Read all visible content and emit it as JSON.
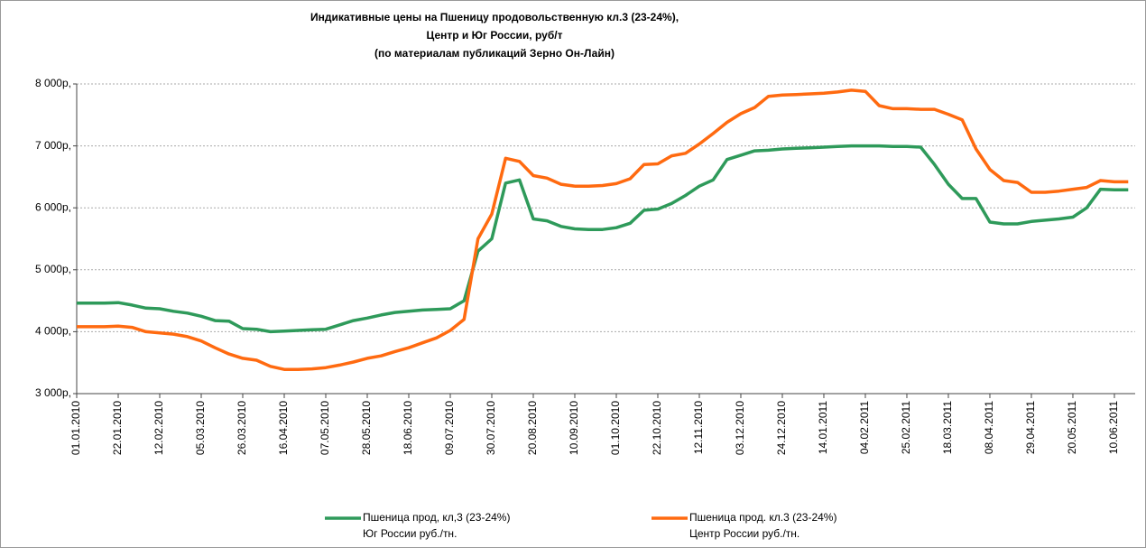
{
  "chart_data": {
    "type": "line",
    "title": [
      "Индикативные цены на Пшеницу продовольственную кл.3 (23-24%),",
      "Центр и Юг России,  руб/т",
      "(по материалам публикаций Зерно Он-Лайн)"
    ],
    "categories": [
      "01.01.2010",
      null,
      null,
      "22.01.2010",
      null,
      null,
      "12.02.2010",
      null,
      null,
      "05.03.2010",
      null,
      null,
      "26.03.2010",
      null,
      null,
      "16.04.2010",
      null,
      null,
      "07.05.2010",
      null,
      null,
      "28.05.2010",
      null,
      null,
      "18.06.2010",
      null,
      null,
      "09.07.2010",
      null,
      null,
      "30.07.2010",
      null,
      null,
      "20.08.2010",
      null,
      null,
      "10.09.2010",
      null,
      null,
      "01.10.2010",
      null,
      null,
      "22.10.2010",
      null,
      null,
      "12.11.2010",
      null,
      null,
      "03.12.2010",
      null,
      null,
      "24.12.2010",
      null,
      null,
      "14.01.2011",
      null,
      null,
      "04.02.2011",
      null,
      null,
      "25.02.2011",
      null,
      null,
      "18.03.2011",
      null,
      null,
      "08.04.2011",
      null,
      null,
      "29.04.2011",
      null,
      null,
      "20.05.2011",
      null,
      null,
      "10.06.2011",
      null
    ],
    "series": [
      {
        "name": [
          "Пшеница прод, кл,3 (23-24%)",
          "Юг России руб./тн."
        ],
        "color": "#2e9a5a",
        "values": [
          4460,
          4460,
          4460,
          4470,
          4430,
          4380,
          4370,
          4330,
          4300,
          4250,
          4180,
          4170,
          4050,
          4040,
          4000,
          4010,
          4020,
          4030,
          4040,
          4110,
          4180,
          4220,
          4270,
          4310,
          4330,
          4350,
          4360,
          4370,
          4500,
          5300,
          5500,
          6400,
          6450,
          5820,
          5790,
          5700,
          5660,
          5650,
          5650,
          5680,
          5750,
          5960,
          5980,
          6070,
          6200,
          6350,
          6450,
          6780,
          6850,
          6920,
          6930,
          6950,
          6960,
          6970,
          6980,
          6990,
          7000,
          7000,
          7000,
          6990,
          6990,
          6980,
          6700,
          6380,
          6150,
          6150,
          5770,
          5740,
          5740,
          5780,
          5800,
          5820,
          5850,
          6000,
          6300,
          6290,
          6290
        ]
      },
      {
        "name": [
          "Пшеница прод. кл.3 (23-24%)",
          "Центр России руб./тн."
        ],
        "color": "#ff6a10",
        "values": [
          4080,
          4080,
          4080,
          4090,
          4070,
          4000,
          3980,
          3960,
          3920,
          3850,
          3740,
          3640,
          3570,
          3540,
          3440,
          3390,
          3390,
          3400,
          3420,
          3460,
          3510,
          3570,
          3610,
          3680,
          3740,
          3820,
          3900,
          4020,
          4200,
          5500,
          5900,
          6800,
          6750,
          6520,
          6480,
          6380,
          6350,
          6350,
          6360,
          6390,
          6470,
          6700,
          6710,
          6840,
          6880,
          7030,
          7200,
          7380,
          7520,
          7620,
          7800,
          7820,
          7830,
          7840,
          7850,
          7870,
          7900,
          7880,
          7650,
          7600,
          7600,
          7590,
          7590,
          7510,
          7420,
          6950,
          6620,
          6440,
          6410,
          6250,
          6250,
          6270,
          6300,
          6330,
          6440,
          6420,
          6420
        ]
      }
    ],
    "ylim": [
      3000,
      8000
    ],
    "yticks": [
      {
        "value": 3000,
        "label": "3 000р,"
      },
      {
        "value": 4000,
        "label": "4 000р,"
      },
      {
        "value": 5000,
        "label": "5 000р,"
      },
      {
        "value": 6000,
        "label": "6 000р,"
      },
      {
        "value": 7000,
        "label": "7 000р,"
      },
      {
        "value": 8000,
        "label": "8 000р,"
      }
    ],
    "grid": true,
    "legend": "bottom"
  }
}
